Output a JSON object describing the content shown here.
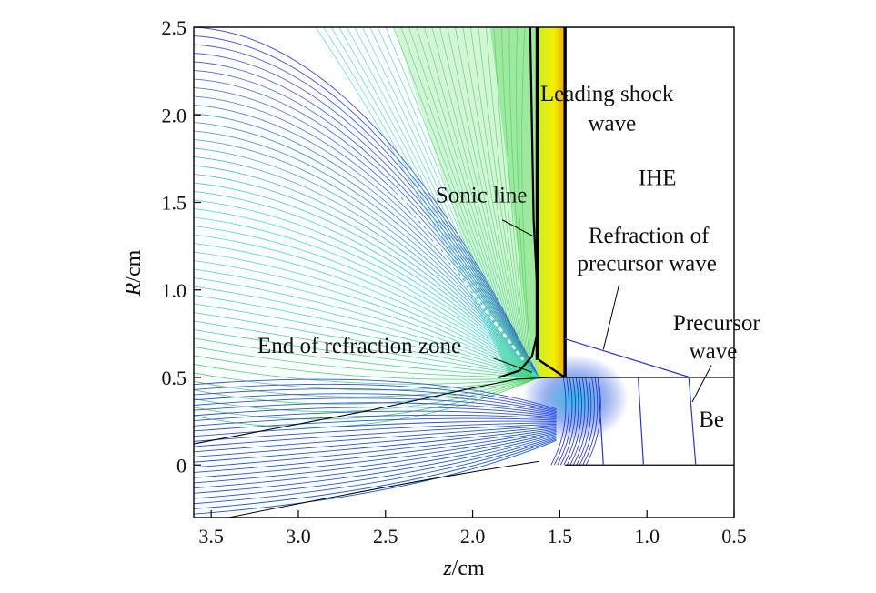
{
  "chart_data": {
    "type": "contour",
    "title": "",
    "xlabel": "z/cm",
    "ylabel": "R/cm",
    "xlabel_parts": {
      "var": "z",
      "unit": "/cm"
    },
    "ylabel_parts": {
      "var": "R",
      "unit": "/cm"
    },
    "xlim": [
      3.6,
      0.5
    ],
    "ylim": [
      -0.3,
      2.5
    ],
    "x_reversed": true,
    "x_ticks": [
      {
        "value": 3.5,
        "label": "3.5"
      },
      {
        "value": 3.0,
        "label": "3.0"
      },
      {
        "value": 2.5,
        "label": "2.5"
      },
      {
        "value": 2.0,
        "label": "2.0"
      },
      {
        "value": 1.5,
        "label": "1.5"
      },
      {
        "value": 1.0,
        "label": "1.0"
      },
      {
        "value": 0.5,
        "label": "0.5"
      }
    ],
    "y_ticks": [
      {
        "value": 0.0,
        "label": "0"
      },
      {
        "value": 0.5,
        "label": "0.5"
      },
      {
        "value": 1.0,
        "label": "1.0"
      },
      {
        "value": 1.5,
        "label": "1.5"
      },
      {
        "value": 2.0,
        "label": "2.0"
      },
      {
        "value": 2.5,
        "label": "2.5"
      }
    ],
    "grid": false,
    "colors": {
      "contour_low": "#1e2ad6",
      "contour_mid": "#30c8c8",
      "contour_high": "#3cd23c",
      "shock": "#f2f200",
      "shock_edge": "#f0a000",
      "boundary": "#000000"
    },
    "interfaces": {
      "ihe_be_R": 0.5,
      "be_axis_R": 0.0
    },
    "leading_shock": {
      "z": [
        1.47,
        1.47
      ],
      "R": [
        0.5,
        2.5
      ],
      "shocked_layer_back_z": 1.63
    },
    "sonic_line": {
      "z": [
        1.85,
        1.73,
        1.66,
        1.63,
        1.63,
        1.65,
        1.67
      ],
      "R": [
        0.5,
        0.54,
        0.62,
        0.75,
        1.0,
        1.4,
        2.5
      ]
    },
    "end_of_refraction_line": {
      "z": [
        3.6,
        2.6,
        2.0,
        1.75,
        1.55
      ],
      "R": [
        0.12,
        0.31,
        0.44,
        0.49,
        0.5
      ]
    },
    "precursor_refraction_line": {
      "z": [
        1.47,
        0.75
      ],
      "R": [
        0.72,
        0.5
      ]
    },
    "precursor_wave_in_be": [
      {
        "z": [
          1.28,
          1.25
        ],
        "R": [
          0.5,
          0.0
        ]
      },
      {
        "z": [
          1.05,
          1.02
        ],
        "R": [
          0.5,
          0.0
        ]
      },
      {
        "z": [
          0.76,
          0.72
        ],
        "R": [
          0.5,
          0.0
        ]
      }
    ],
    "annotations": [
      {
        "text": "Leading shock",
        "z": 1.23,
        "R": 2.08
      },
      {
        "text": "wave",
        "z": 1.2,
        "R": 1.91
      },
      {
        "text": "IHE",
        "z": 0.94,
        "R": 1.6
      },
      {
        "text": "Sonic line",
        "z": 1.95,
        "R": 1.5
      },
      {
        "text": "Refraction of",
        "z": 0.99,
        "R": 1.27
      },
      {
        "text": "precursor wave",
        "z": 1.0,
        "R": 1.11
      },
      {
        "text": "End of refraction zone",
        "z": 2.65,
        "R": 0.64
      },
      {
        "text": "Precursor",
        "z": 0.6,
        "R": 0.77
      },
      {
        "text": "wave",
        "z": 0.62,
        "R": 0.61
      },
      {
        "text": "Be",
        "z": 0.63,
        "R": 0.22
      }
    ],
    "leader_lines": [
      {
        "from": [
          1.83,
          1.4
        ],
        "to": [
          1.64,
          1.3
        ]
      },
      {
        "from": [
          1.88,
          0.61
        ],
        "to": [
          1.66,
          0.53
        ]
      },
      {
        "from": [
          1.16,
          1.03
        ],
        "to": [
          1.25,
          0.66
        ]
      },
      {
        "from": [
          0.63,
          0.57
        ],
        "to": [
          0.74,
          0.36
        ]
      }
    ]
  }
}
